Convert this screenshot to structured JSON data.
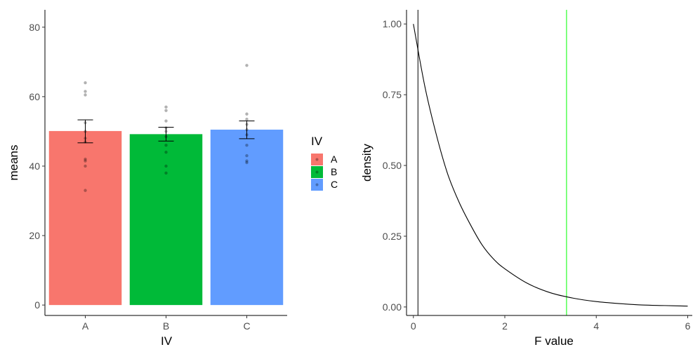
{
  "chart_data": [
    {
      "type": "bar",
      "xlabel": "IV",
      "ylabel": "means",
      "categories": [
        "A",
        "B",
        "C"
      ],
      "values": [
        50.1,
        49.2,
        50.5
      ],
      "error_low": [
        46.7,
        47.2,
        47.9
      ],
      "error_high": [
        53.3,
        51.2,
        53.0
      ],
      "points": [
        [
          64,
          61.5,
          60.5,
          52.5,
          50,
          48,
          47,
          42,
          41.5,
          40,
          33
        ],
        [
          57,
          56,
          53,
          51,
          50,
          48.5,
          46,
          44,
          40,
          38
        ],
        [
          69,
          55,
          53.5,
          52,
          50.5,
          49,
          46,
          43,
          41.5,
          41
        ]
      ],
      "ylim": [
        -3,
        85
      ],
      "yticks": [
        0,
        20,
        40,
        60,
        80
      ],
      "grid": false,
      "legend": {
        "title": "IV",
        "position": "right",
        "entries": [
          "A",
          "B",
          "C"
        ]
      },
      "colors": [
        "#F8766D",
        "#00BA38",
        "#619CFF"
      ]
    },
    {
      "type": "line",
      "xlabel": "F value",
      "ylabel": "density",
      "series_description": "F-distribution density curve, exponential decay from 1.00 at F=0",
      "x": [
        0,
        0.25,
        0.5,
        0.75,
        1,
        1.25,
        1.5,
        1.75,
        2,
        2.5,
        3,
        3.5,
        4,
        4.5,
        5,
        5.5,
        6
      ],
      "y": [
        1.0,
        0.78,
        0.61,
        0.47,
        0.37,
        0.29,
        0.22,
        0.17,
        0.135,
        0.083,
        0.05,
        0.031,
        0.019,
        0.012,
        0.007,
        0.005,
        0.003
      ],
      "xlim": [
        -0.15,
        6.1
      ],
      "ylim": [
        -0.03,
        1.05
      ],
      "xticks": [
        0,
        2,
        4,
        6
      ],
      "yticks": [
        "0.00",
        "0.25",
        "0.50",
        "0.75",
        "1.00"
      ],
      "vlines": [
        {
          "x": 0.1,
          "color": "#000000"
        },
        {
          "x": 3.35,
          "color": "#00ff00"
        }
      ],
      "grid": false
    }
  ]
}
